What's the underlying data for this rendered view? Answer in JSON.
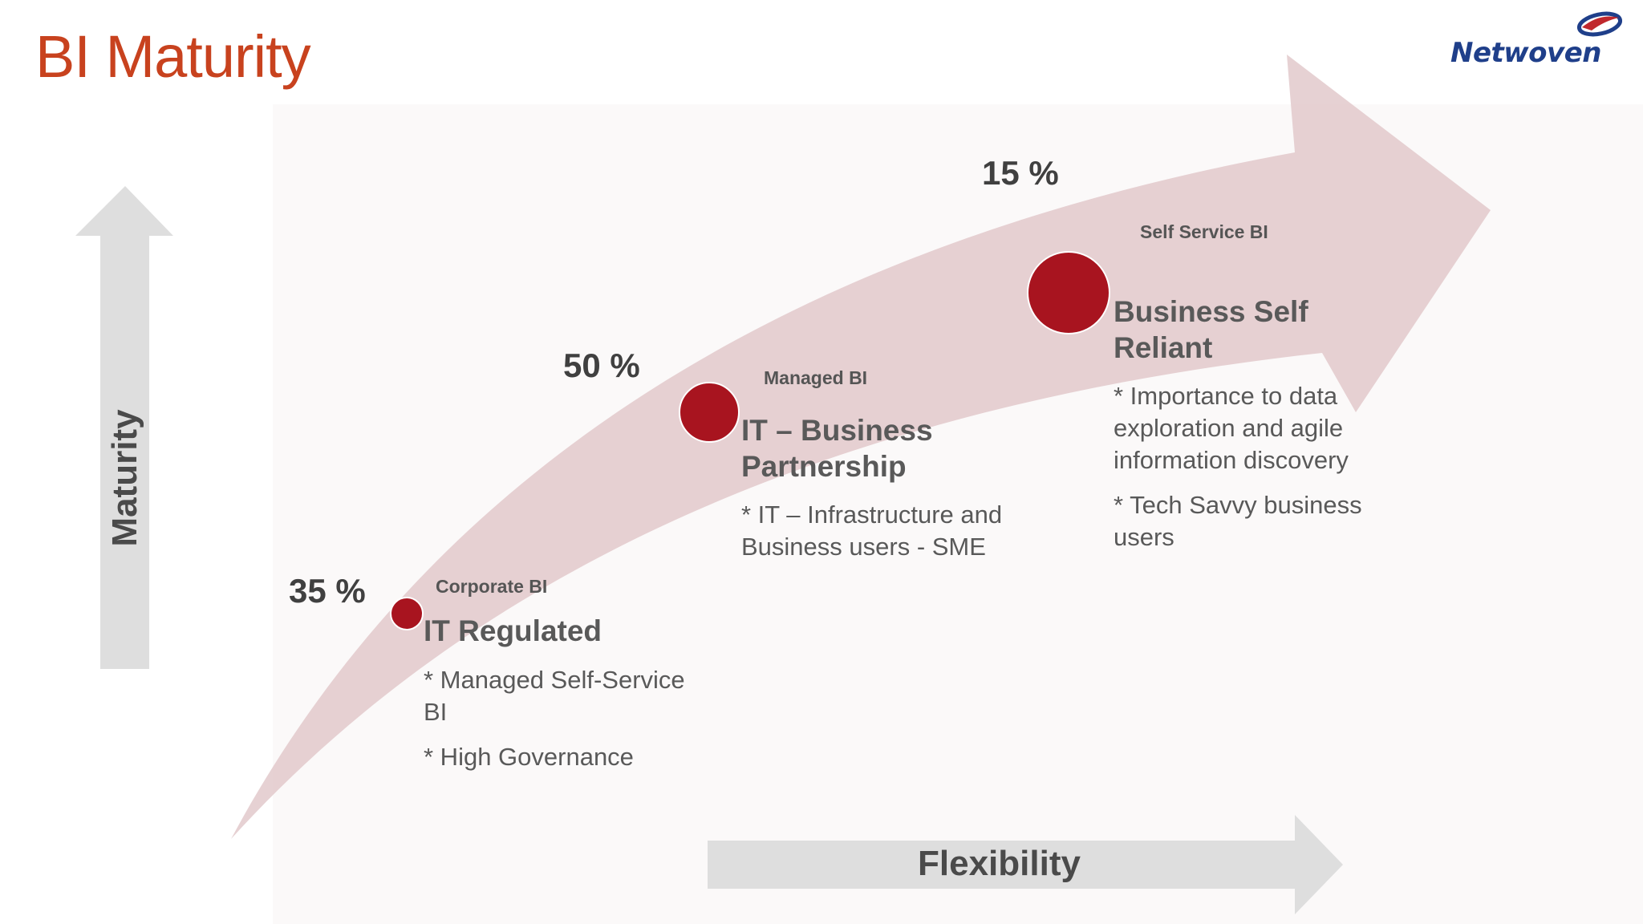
{
  "title": "BI Maturity",
  "logo": {
    "text": "Netwoven",
    "colors": {
      "text": "#1f3f8a",
      "swoosh_red": "#c0282d",
      "swoosh_blue": "#1f3f8a"
    }
  },
  "axes": {
    "y_label": "Maturity",
    "x_label": "Flexibility"
  },
  "colors": {
    "accent": "#c8421e",
    "stage_circle": "#a8141f",
    "main_arrow": "#e2c9cb",
    "axis_arrow": "#dedede"
  },
  "stages": [
    {
      "percent": "35 %",
      "category": "Corporate BI",
      "heading": "IT Regulated",
      "notes": [
        "* Managed Self-Service BI",
        "* High Governance"
      ]
    },
    {
      "percent": "50 %",
      "category": "Managed BI",
      "heading": "IT – Business Partnership",
      "notes": [
        "* IT – Infrastructure and Business users - SME"
      ]
    },
    {
      "percent": "15 %",
      "category": "Self Service BI",
      "heading": "Business Self Reliant",
      "notes": [
        "* Importance to data exploration and agile information discovery",
        "* Tech Savvy business users"
      ]
    }
  ]
}
